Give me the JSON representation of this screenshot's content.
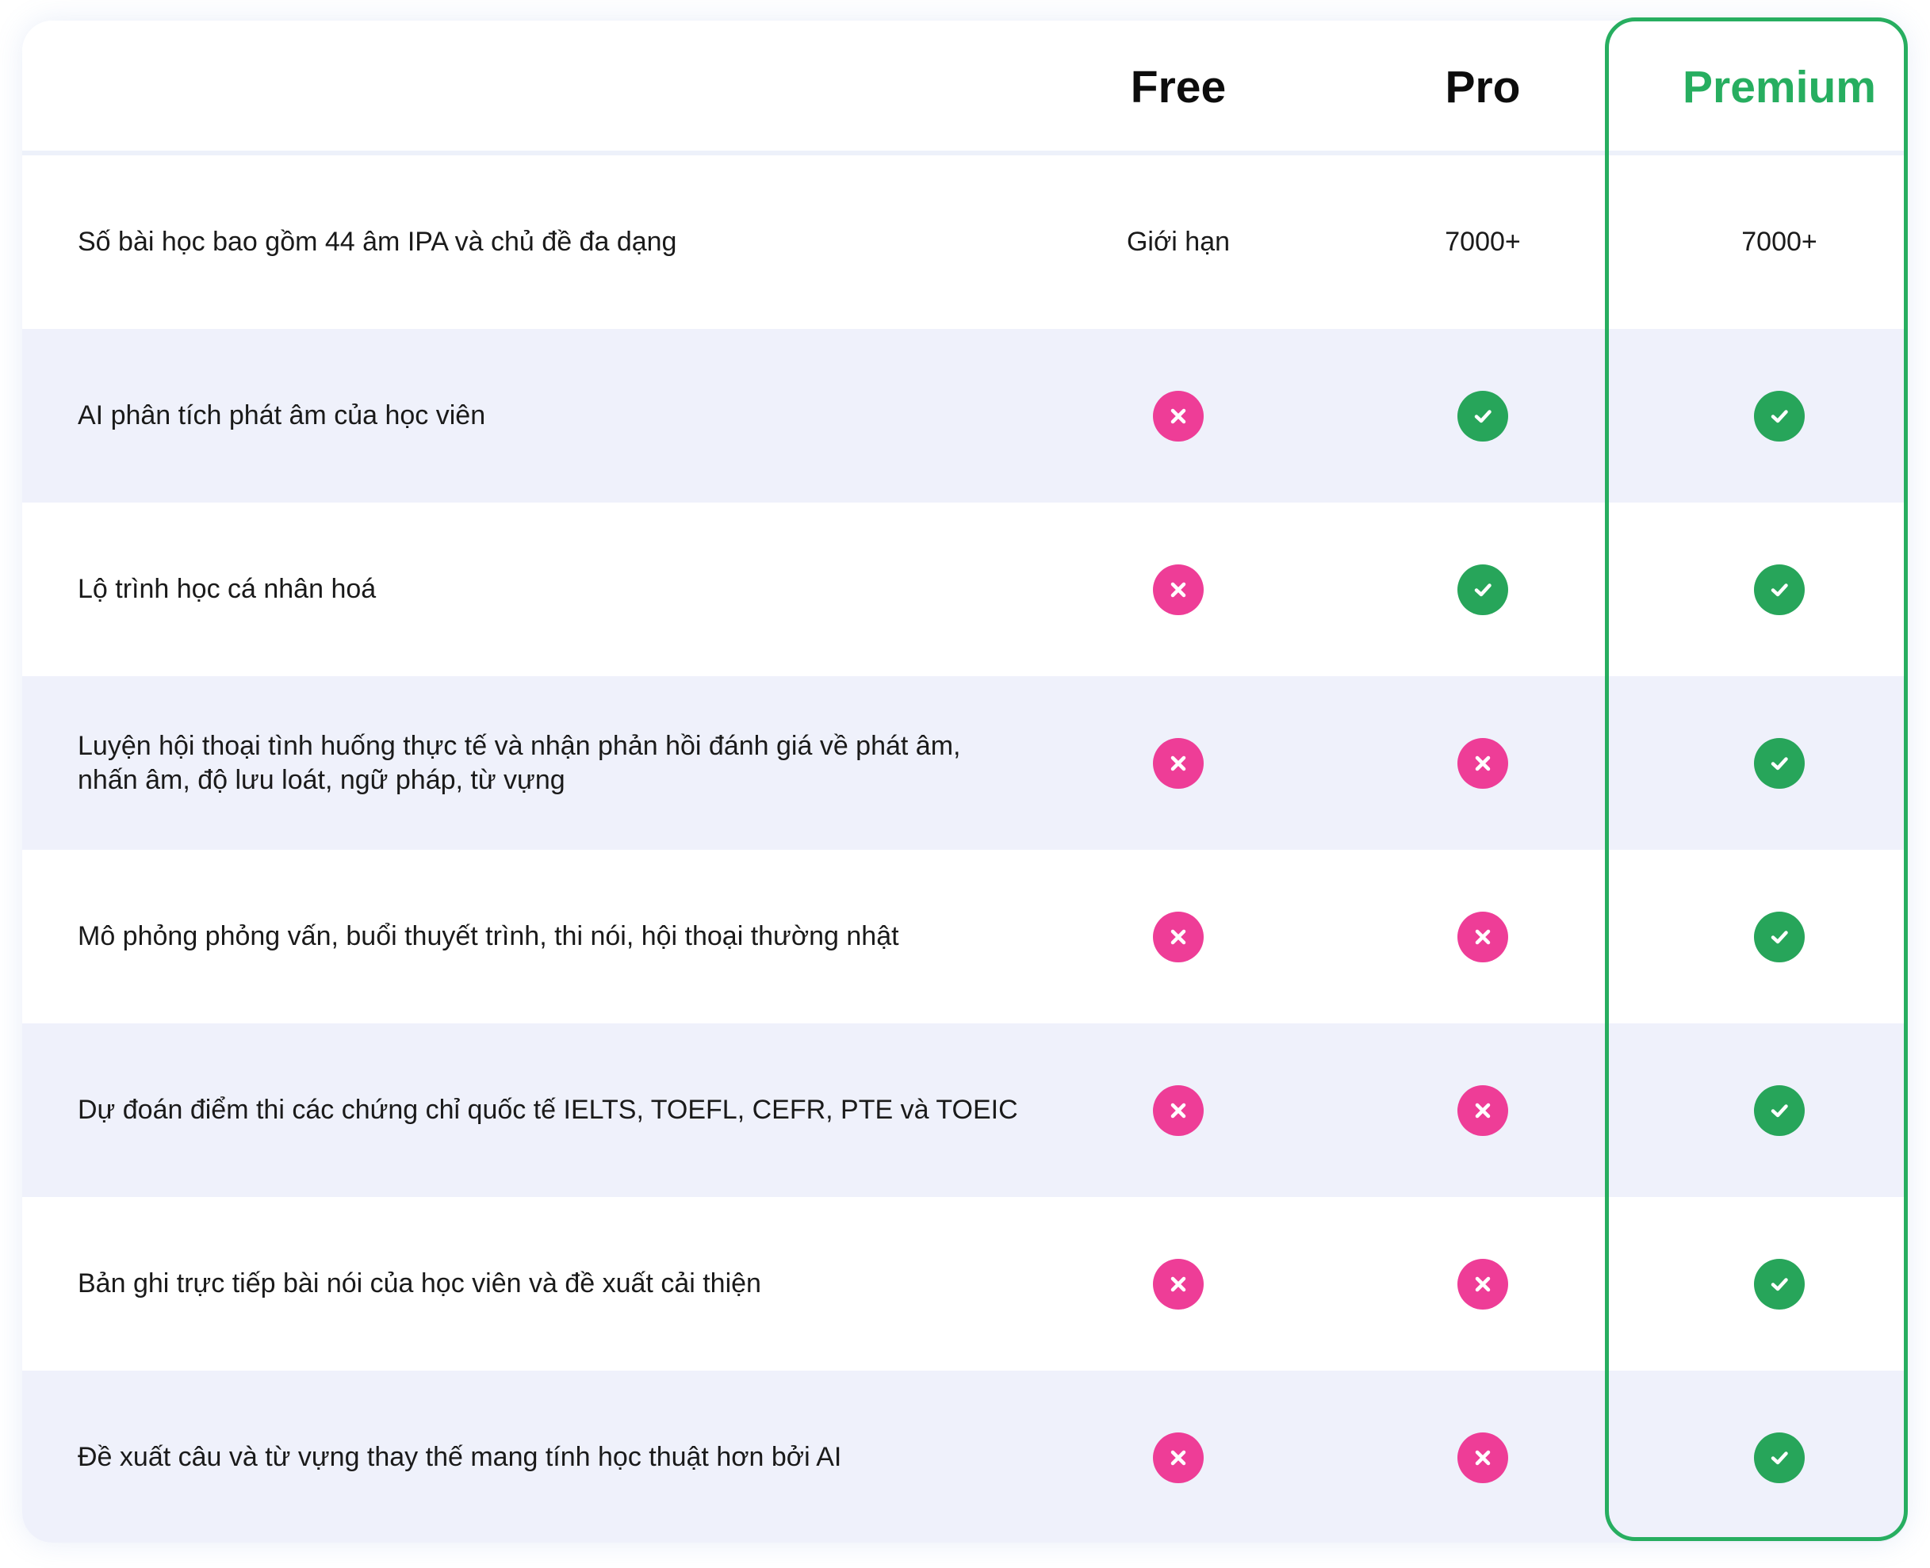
{
  "plans": [
    {
      "key": "free",
      "name": "Free"
    },
    {
      "key": "pro",
      "name": "Pro"
    },
    {
      "key": "premium",
      "name": "Premium"
    }
  ],
  "colors": {
    "premium_accent": "#27ae60",
    "check": "#27a55a",
    "cross": "#ee3d97",
    "alt_row": "#eff1fb"
  },
  "icons": {
    "check": "check-circle-icon",
    "cross": "x-circle-icon"
  },
  "features": [
    {
      "label": "Số bài học bao gồm 44 âm IPA và chủ đề đa dạng",
      "free": "Giới hạn",
      "pro": "7000+",
      "premium": "7000+"
    },
    {
      "label": "AI phân tích phát âm của học viên",
      "free": false,
      "pro": true,
      "premium": true
    },
    {
      "label": "Lộ trình học cá nhân hoá",
      "free": false,
      "pro": true,
      "premium": true
    },
    {
      "label": "Luyện hội thoại tình huống thực tế và nhận phản hồi đánh giá về phát âm, nhấn âm, độ lưu loát, ngữ pháp, từ vựng",
      "free": false,
      "pro": false,
      "premium": true
    },
    {
      "label": "Mô phỏng phỏng vấn, buổi thuyết trình, thi nói, hội thoại thường nhật",
      "free": false,
      "pro": false,
      "premium": true
    },
    {
      "label": "Dự đoán điểm thi các chứng chỉ quốc tế IELTS, TOEFL, CEFR, PTE và TOEIC",
      "free": false,
      "pro": false,
      "premium": true
    },
    {
      "label": "Bản ghi trực tiếp bài nói của học viên và đề xuất cải thiện",
      "free": false,
      "pro": false,
      "premium": true
    },
    {
      "label": "Đề xuất câu và từ vựng thay thế mang tính học thuật hơn bởi AI",
      "free": false,
      "pro": false,
      "premium": true
    }
  ]
}
